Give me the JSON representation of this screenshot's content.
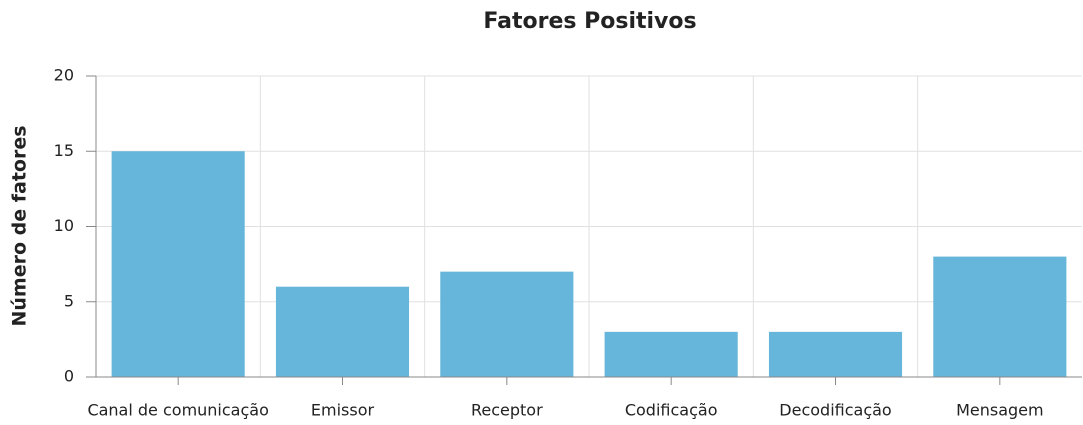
{
  "chart_data": {
    "type": "bar",
    "title": "Fatores Positivos",
    "y_label": "Número de fatores",
    "categories": [
      "Canal de comunicação",
      "Emissor",
      "Receptor",
      "Codificação",
      "Decodificação",
      "Mensagem"
    ],
    "values": [
      15,
      6,
      7,
      3,
      3,
      8
    ],
    "color": "#66b5db",
    "ylim": [
      0,
      20
    ],
    "yticks": [
      0,
      5,
      10,
      15,
      20
    ],
    "grid": true
  }
}
